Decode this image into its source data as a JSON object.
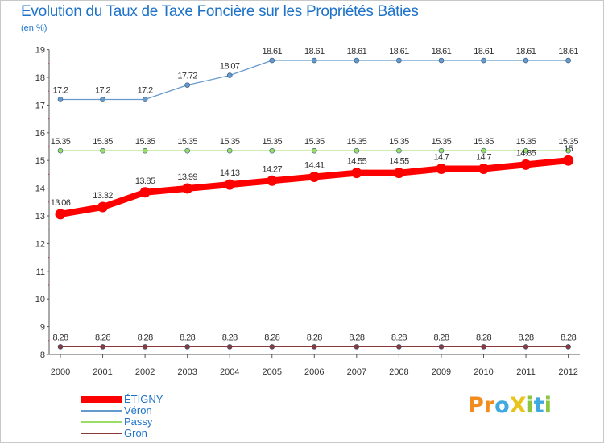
{
  "title": "Evolution du Taux de Taxe Foncière sur les Propriétés Bâties",
  "unit_label": "(en %)",
  "chart_data": {
    "type": "line",
    "x": [
      "2000",
      "2001",
      "2002",
      "2003",
      "2004",
      "2005",
      "2006",
      "2007",
      "2008",
      "2009",
      "2010",
      "2011",
      "2012"
    ],
    "ylim": [
      8,
      19
    ],
    "yticks": [
      "8",
      "9",
      "10",
      "11",
      "12",
      "13",
      "14",
      "15",
      "16",
      "17",
      "18",
      "19"
    ],
    "grid": false,
    "legend_position": "bottom-left",
    "series": [
      {
        "name": "ÉTIGNY",
        "color": "#ff0000",
        "values": [
          13.06,
          13.32,
          13.85,
          13.99,
          14.13,
          14.27,
          14.41,
          14.55,
          14.55,
          14.7,
          14.7,
          14.85,
          15
        ],
        "labels": [
          "13.06",
          "13.32",
          "13.85",
          "13.99",
          "14.13",
          "14.27",
          "14.41",
          "14.55",
          "14.55",
          "14.7",
          "14.7",
          "14.85",
          "15"
        ]
      },
      {
        "name": "Véron",
        "color": "#6699cc",
        "values": [
          17.2,
          17.2,
          17.2,
          17.72,
          18.07,
          18.61,
          18.61,
          18.61,
          18.61,
          18.61,
          18.61,
          18.61,
          18.61
        ],
        "labels": [
          "17.2",
          "17.2",
          "17.2",
          "17.72",
          "18.07",
          "18.61",
          "18.61",
          "18.61",
          "18.61",
          "18.61",
          "18.61",
          "18.61",
          "18.61"
        ]
      },
      {
        "name": "Passy",
        "color": "#99dd66",
        "values": [
          15.35,
          15.35,
          15.35,
          15.35,
          15.35,
          15.35,
          15.35,
          15.35,
          15.35,
          15.35,
          15.35,
          15.35,
          15.35
        ],
        "labels": [
          "15.35",
          "15.35",
          "15.35",
          "15.35",
          "15.35",
          "15.35",
          "15.35",
          "15.35",
          "15.35",
          "15.35",
          "15.35",
          "15.35",
          "15.35"
        ]
      },
      {
        "name": "Gron",
        "color": "#8b3a3a",
        "values": [
          8.28,
          8.28,
          8.28,
          8.28,
          8.28,
          8.28,
          8.28,
          8.28,
          8.28,
          8.28,
          8.28,
          8.28,
          8.28
        ],
        "labels": [
          "8.28",
          "8.28",
          "8.28",
          "8.28",
          "8.28",
          "8.28",
          "8.28",
          "8.28",
          "8.28",
          "8.28",
          "8.28",
          "8.28",
          "8.28"
        ]
      }
    ]
  },
  "logo": {
    "text": "ProXiti",
    "letters": [
      {
        "char": "P",
        "color": "#f28c1e"
      },
      {
        "char": "r",
        "color": "#f28c1e"
      },
      {
        "char": "o",
        "color": "#3fa9e0"
      },
      {
        "char": "X",
        "color": "#e8c41c"
      },
      {
        "char": "i",
        "color": "#8cc63f"
      },
      {
        "char": "t",
        "color": "#3fa9e0"
      },
      {
        "char": "i",
        "color": "#8cc63f"
      }
    ]
  }
}
